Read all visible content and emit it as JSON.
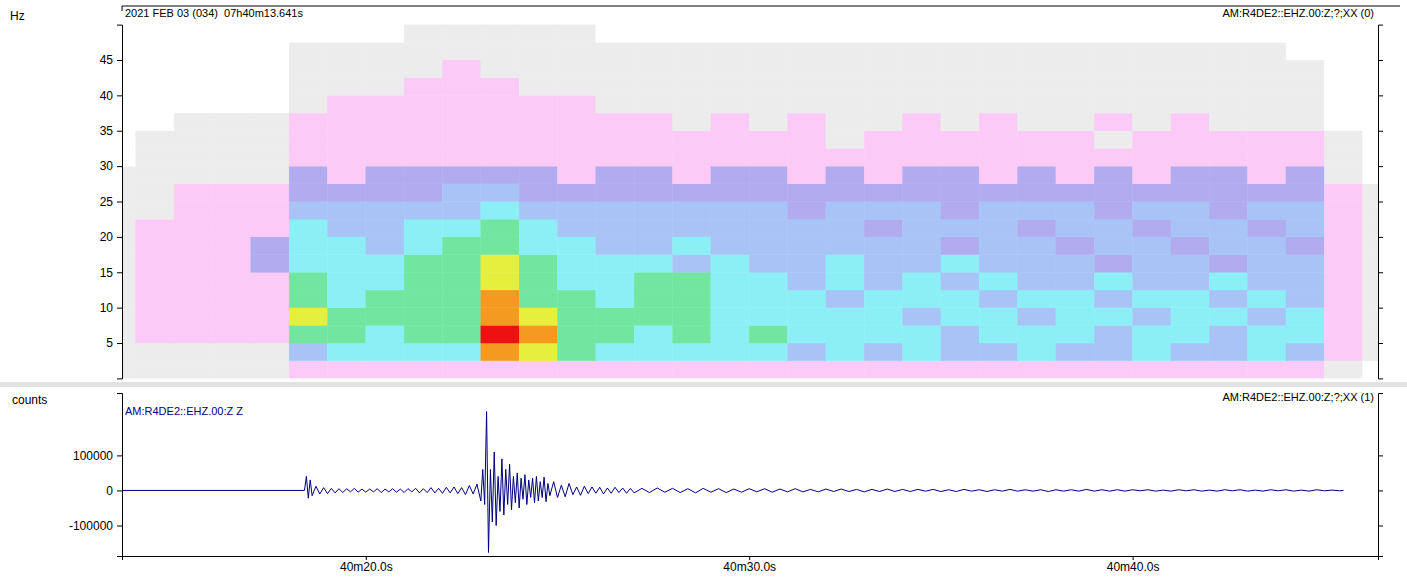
{
  "chart_data": [
    {
      "type": "heatmap",
      "title": "2021 FEB 03 (034)  07h40m13.641s",
      "subtitle": "AM:R4DE2::EHZ.00:Z;?;XX (0)",
      "y_label": "Hz",
      "tick_labels": "y",
      "xlim": [
        13.641,
        46.4
      ],
      "ylim": [
        0,
        50
      ],
      "yticks": [
        5,
        10,
        15,
        20,
        25,
        30,
        35,
        40,
        45
      ],
      "zlim": [
        0,
        9
      ],
      "x_bins": [
        13,
        14,
        15,
        16,
        17,
        18,
        19,
        20,
        21,
        22,
        23,
        24,
        25,
        26,
        27,
        28,
        29,
        30,
        31,
        32,
        33,
        34,
        35,
        36,
        37,
        38,
        39,
        40,
        41,
        42,
        43,
        44,
        45,
        46,
        47
      ],
      "y_bins": [
        0,
        2.5,
        5,
        7.5,
        10,
        12.5,
        15,
        17.5,
        20,
        22.5,
        25,
        27.5,
        30,
        32.5,
        35,
        37.5,
        40,
        42.5,
        45,
        47.5,
        50
      ],
      "cells": [
        [
          1,
          1,
          1,
          1,
          1,
          2,
          2,
          2,
          2,
          2,
          2,
          2,
          2,
          2,
          2,
          2,
          2,
          2,
          2,
          2,
          2,
          2,
          2,
          2,
          2,
          2,
          2,
          2,
          2,
          2,
          2,
          2,
          1,
          0
        ],
        [
          1,
          1,
          1,
          1,
          1,
          4,
          5,
          5,
          5,
          5,
          8,
          7,
          6,
          5,
          5,
          5,
          5,
          5,
          4,
          5,
          4,
          5,
          4,
          4,
          5,
          4,
          4,
          5,
          4,
          4,
          5,
          4,
          2,
          1
        ],
        [
          1,
          2,
          2,
          2,
          2,
          6,
          6,
          5,
          6,
          6,
          9,
          8,
          6,
          6,
          5,
          6,
          5,
          6,
          5,
          5,
          5,
          5,
          4,
          5,
          5,
          5,
          4,
          5,
          5,
          4,
          5,
          5,
          2,
          1
        ],
        [
          1,
          2,
          2,
          2,
          2,
          7,
          6,
          6,
          6,
          6,
          8,
          7,
          6,
          6,
          6,
          6,
          5,
          5,
          5,
          5,
          5,
          4,
          5,
          5,
          4,
          5,
          5,
          4,
          5,
          5,
          4,
          5,
          2,
          1
        ],
        [
          1,
          2,
          2,
          2,
          2,
          6,
          5,
          6,
          6,
          6,
          8,
          6,
          6,
          5,
          6,
          6,
          5,
          5,
          5,
          4,
          5,
          5,
          5,
          4,
          5,
          5,
          4,
          5,
          5,
          4,
          5,
          4,
          2,
          1
        ],
        [
          1,
          2,
          2,
          2,
          2,
          6,
          5,
          5,
          6,
          6,
          7,
          6,
          5,
          5,
          6,
          6,
          5,
          5,
          4,
          5,
          4,
          5,
          4,
          5,
          4,
          4,
          5,
          4,
          4,
          5,
          4,
          4,
          2,
          1
        ],
        [
          1,
          2,
          2,
          2,
          3,
          5,
          5,
          5,
          6,
          6,
          7,
          6,
          5,
          5,
          5,
          4,
          5,
          4,
          4,
          5,
          4,
          4,
          5,
          4,
          4,
          4,
          3,
          4,
          4,
          3,
          4,
          4,
          2,
          1
        ],
        [
          1,
          2,
          2,
          2,
          3,
          5,
          5,
          4,
          5,
          6,
          6,
          5,
          5,
          4,
          4,
          5,
          4,
          4,
          4,
          4,
          4,
          4,
          3,
          4,
          4,
          3,
          4,
          4,
          3,
          4,
          4,
          3,
          2,
          1
        ],
        [
          1,
          2,
          2,
          2,
          2,
          5,
          4,
          4,
          5,
          5,
          6,
          5,
          4,
          4,
          4,
          4,
          4,
          4,
          4,
          4,
          3,
          4,
          4,
          4,
          3,
          4,
          4,
          3,
          4,
          4,
          3,
          4,
          2,
          1
        ],
        [
          1,
          1,
          2,
          2,
          2,
          4,
          4,
          4,
          4,
          4,
          5,
          4,
          4,
          4,
          4,
          4,
          4,
          4,
          3,
          4,
          4,
          4,
          3,
          4,
          4,
          4,
          3,
          4,
          4,
          3,
          4,
          4,
          2,
          1
        ],
        [
          1,
          1,
          2,
          2,
          2,
          3,
          3,
          3,
          3,
          4,
          4,
          3,
          3,
          3,
          3,
          3,
          3,
          3,
          3,
          3,
          3,
          3,
          3,
          3,
          3,
          3,
          3,
          3,
          3,
          3,
          3,
          3,
          2,
          1
        ],
        [
          1,
          1,
          1,
          1,
          1,
          3,
          2,
          3,
          3,
          3,
          3,
          3,
          2,
          3,
          3,
          2,
          3,
          3,
          2,
          3,
          2,
          3,
          3,
          2,
          3,
          2,
          3,
          2,
          3,
          3,
          2,
          3,
          1,
          0
        ],
        [
          0,
          1,
          1,
          1,
          1,
          2,
          2,
          2,
          2,
          2,
          2,
          2,
          2,
          2,
          2,
          2,
          2,
          2,
          2,
          2,
          2,
          2,
          2,
          2,
          2,
          2,
          2,
          2,
          2,
          2,
          2,
          2,
          1,
          0
        ],
        [
          0,
          1,
          1,
          1,
          1,
          2,
          2,
          2,
          2,
          2,
          2,
          2,
          2,
          2,
          2,
          2,
          2,
          2,
          2,
          1,
          2,
          2,
          2,
          2,
          2,
          2,
          1,
          2,
          2,
          2,
          2,
          2,
          1,
          0
        ],
        [
          0,
          0,
          1,
          1,
          1,
          2,
          2,
          2,
          2,
          2,
          2,
          2,
          2,
          2,
          2,
          1,
          2,
          1,
          2,
          1,
          1,
          2,
          1,
          2,
          1,
          1,
          2,
          1,
          2,
          1,
          1,
          1,
          0,
          0
        ],
        [
          0,
          0,
          0,
          0,
          0,
          1,
          2,
          2,
          2,
          2,
          2,
          2,
          2,
          1,
          1,
          1,
          1,
          1,
          1,
          1,
          1,
          1,
          1,
          1,
          1,
          1,
          1,
          1,
          1,
          1,
          1,
          1,
          0,
          0
        ],
        [
          0,
          0,
          0,
          0,
          0,
          1,
          1,
          1,
          2,
          2,
          2,
          1,
          1,
          1,
          1,
          1,
          1,
          1,
          1,
          1,
          1,
          1,
          1,
          1,
          1,
          1,
          1,
          1,
          1,
          1,
          1,
          1,
          0,
          0
        ],
        [
          0,
          0,
          0,
          0,
          0,
          1,
          1,
          1,
          1,
          2,
          1,
          1,
          1,
          1,
          1,
          1,
          1,
          1,
          1,
          1,
          1,
          1,
          1,
          1,
          1,
          1,
          1,
          1,
          1,
          1,
          1,
          1,
          0,
          0
        ],
        [
          0,
          0,
          0,
          0,
          0,
          1,
          1,
          1,
          1,
          1,
          1,
          1,
          1,
          1,
          1,
          1,
          1,
          1,
          1,
          1,
          1,
          1,
          1,
          1,
          1,
          1,
          1,
          1,
          1,
          1,
          1,
          0,
          0,
          0
        ],
        [
          0,
          0,
          0,
          0,
          0,
          0,
          0,
          0,
          1,
          1,
          1,
          1,
          1,
          0,
          0,
          0,
          0,
          0,
          0,
          0,
          0,
          0,
          0,
          0,
          0,
          0,
          0,
          0,
          0,
          0,
          0,
          0,
          0,
          0
        ]
      ]
    },
    {
      "type": "line",
      "title": "AM:R4DE2::EHZ.00:Z;?;XX (1)",
      "y_label": "counts",
      "legend": "upper left",
      "xlim": [
        13.641,
        46.4
      ],
      "ylim": [
        -187000,
        278000
      ],
      "xticks": [
        {
          "value": 20,
          "label": "40m20.0s"
        },
        {
          "value": 30,
          "label": "40m30.0s"
        },
        {
          "value": 40,
          "label": "40m40.0s"
        }
      ],
      "yticks": [
        -100000,
        0,
        100000
      ],
      "x": [
        13.641,
        18.4,
        18.45,
        18.5,
        18.55,
        18.6,
        18.7,
        18.8,
        18.9,
        19.0,
        19.1,
        19.2,
        19.3,
        19.4,
        19.5,
        19.6,
        19.7,
        19.8,
        19.9,
        20.0,
        20.1,
        20.2,
        20.3,
        20.4,
        20.5,
        20.6,
        20.7,
        20.8,
        20.9,
        21.0,
        21.1,
        21.2,
        21.3,
        21.4,
        21.5,
        21.6,
        21.7,
        21.8,
        21.9,
        22.0,
        22.1,
        22.2,
        22.3,
        22.4,
        22.5,
        22.6,
        22.7,
        22.8,
        22.9,
        23.0,
        23.05,
        23.1,
        23.15,
        23.2,
        23.25,
        23.3,
        23.35,
        23.4,
        23.45,
        23.5,
        23.55,
        23.6,
        23.65,
        23.7,
        23.75,
        23.8,
        23.85,
        23.9,
        23.95,
        24.0,
        24.05,
        24.1,
        24.15,
        24.2,
        24.25,
        24.3,
        24.35,
        24.4,
        24.45,
        24.5,
        24.55,
        24.6,
        24.65,
        24.7,
        24.75,
        24.8,
        24.9,
        25.0,
        25.1,
        25.2,
        25.3,
        25.4,
        25.5,
        25.6,
        25.7,
        25.8,
        25.9,
        26.0,
        26.1,
        26.2,
        26.3,
        26.4,
        26.5,
        26.6,
        26.7,
        26.8,
        26.9,
        27.0,
        27.2,
        27.4,
        27.6,
        27.8,
        28.0,
        28.2,
        28.4,
        28.6,
        28.8,
        29.0,
        29.2,
        29.4,
        29.6,
        29.8,
        30.0,
        30.2,
        30.4,
        30.6,
        30.8,
        31.0,
        31.2,
        31.4,
        31.6,
        31.8,
        32.0,
        32.2,
        32.4,
        32.6,
        32.8,
        33.0,
        33.2,
        33.4,
        33.6,
        33.8,
        34.0,
        34.2,
        34.4,
        34.6,
        34.8,
        35.0,
        35.2,
        35.4,
        35.6,
        35.8,
        36.0,
        36.2,
        36.4,
        36.6,
        36.8,
        37.0,
        37.2,
        37.4,
        37.6,
        37.8,
        38.0,
        38.2,
        38.4,
        38.6,
        38.8,
        39.0,
        39.2,
        39.4,
        39.6,
        39.8,
        40.0,
        40.2,
        40.4,
        40.6,
        40.8,
        41.0,
        41.2,
        41.4,
        41.6,
        41.8,
        42.0,
        42.2,
        42.4,
        42.6,
        42.8,
        43.0,
        43.2,
        43.4,
        43.6,
        43.8,
        44.0,
        44.2,
        44.4,
        44.6,
        44.8,
        45.0,
        45.2,
        45.4,
        45.5
      ],
      "series": [
        {
          "name": "AM:R4DE2::EHZ.00:Z Z",
          "color": "#000080",
          "values": [
            0,
            0,
            40000,
            -22000,
            30000,
            -15000,
            12000,
            -10000,
            8000,
            -9000,
            6000,
            -7000,
            5000,
            -6000,
            5000,
            -4000,
            6000,
            -5000,
            4000,
            -5000,
            4000,
            -4000,
            5000,
            -6000,
            4000,
            -4000,
            5000,
            -5000,
            4000,
            -6000,
            5000,
            -4000,
            6000,
            -7000,
            5000,
            -6000,
            8000,
            -7000,
            6000,
            -8000,
            9000,
            -7000,
            10000,
            -9000,
            8000,
            -12000,
            14000,
            -10000,
            18000,
            -30000,
            60000,
            -40000,
            225000,
            -177000,
            60000,
            -90000,
            110000,
            -100000,
            40000,
            -60000,
            90000,
            -70000,
            60000,
            -40000,
            75000,
            -55000,
            40000,
            -35000,
            50000,
            -50000,
            35000,
            -25000,
            45000,
            -40000,
            30000,
            -20000,
            35000,
            -35000,
            40000,
            -30000,
            25000,
            -20000,
            38000,
            -32000,
            20000,
            -15000,
            25000,
            -20000,
            15000,
            -18000,
            20000,
            -12000,
            10000,
            -14000,
            12000,
            -9000,
            10000,
            -8000,
            9000,
            -10000,
            7000,
            -8000,
            9000,
            -6000,
            7000,
            -8000,
            6000,
            -7000,
            6000,
            -6000,
            7000,
            -5000,
            6000,
            -6000,
            5000,
            -7000,
            6000,
            -5000,
            5000,
            -6000,
            4000,
            -5000,
            5000,
            -4000,
            5000,
            -5000,
            4000,
            -4000,
            5000,
            -4000,
            3000,
            -4000,
            4000,
            -3000,
            4000,
            -3000,
            3000,
            -4000,
            3000,
            -3000,
            4000,
            -3000,
            3000,
            -3000,
            3000,
            -2000,
            3000,
            -3000,
            2000,
            -3000,
            3000,
            -2000,
            2000,
            -3000,
            2000,
            -2000,
            3000,
            -2000,
            2000,
            -2000,
            2000,
            -3000,
            2000,
            -2000,
            2000,
            -2000,
            3000,
            -2000,
            2000,
            -2000,
            2000,
            -2000,
            2000,
            -1000,
            2000,
            -2000,
            1000,
            -2000,
            2000,
            -1000,
            2000,
            -2000,
            1000,
            -2000,
            2000,
            -1000,
            2000,
            -2000,
            1000,
            -2000,
            2000,
            -1000,
            2000,
            -2000,
            1000,
            -2000,
            2000,
            -1000,
            1000,
            -1000,
            0
          ]
        }
      ]
    }
  ]
}
